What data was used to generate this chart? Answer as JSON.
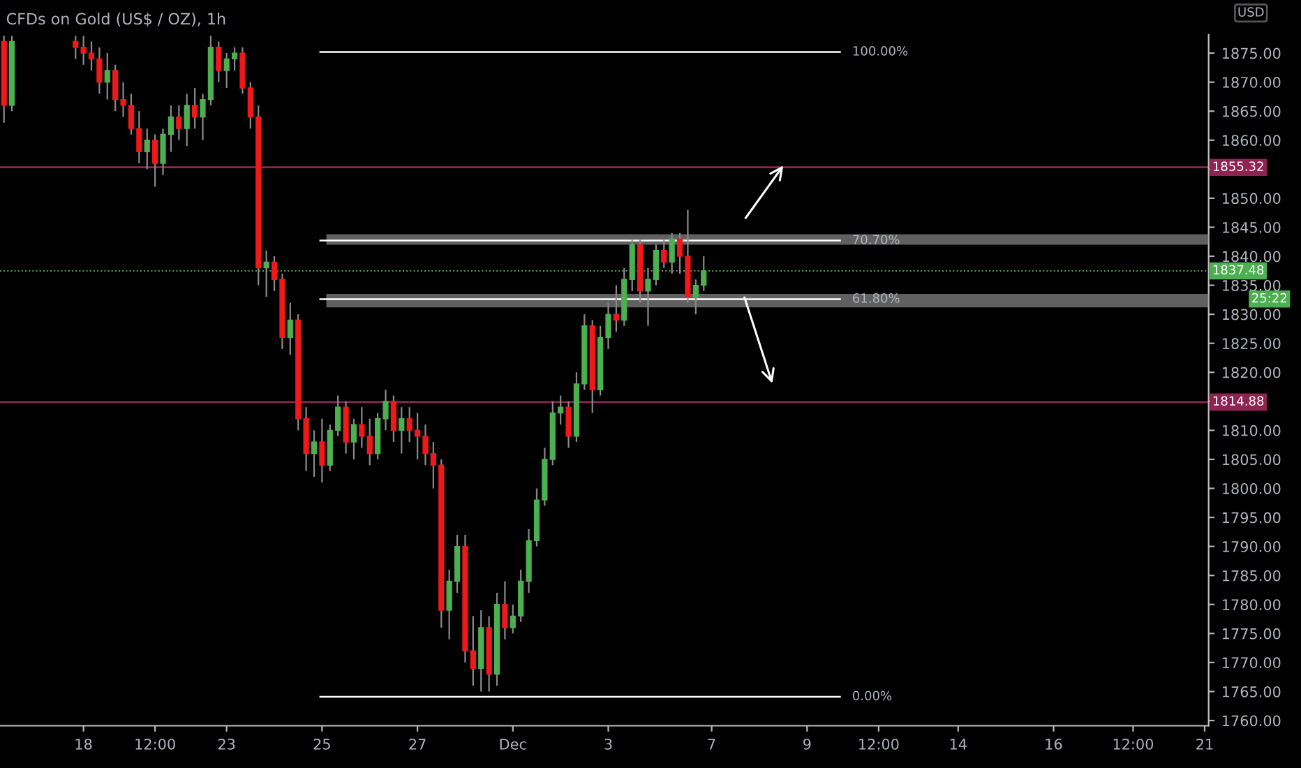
{
  "chart_data": {
    "type": "candlestick",
    "title": "CFDs on Gold (US$ / OZ), 1h",
    "ylabel": "USD",
    "categories": [
      null,
      null,
      null,
      null,
      null,
      null,
      null,
      null,
      null,
      null,
      "18",
      null,
      null,
      null,
      null,
      null,
      null,
      null,
      null,
      "12:00",
      null,
      null,
      null,
      null,
      null,
      null,
      null,
      null,
      "23",
      null,
      null,
      null,
      null,
      null,
      null,
      null,
      null,
      null,
      null,
      null,
      "25",
      null,
      null,
      null,
      null,
      null,
      null,
      null,
      null,
      null,
      null,
      null,
      "27",
      null,
      null,
      null,
      null,
      null,
      null,
      null,
      null,
      null,
      null,
      null,
      "Dec",
      null,
      null,
      null,
      null,
      null,
      null,
      null,
      null,
      null,
      null,
      null,
      "3",
      null,
      null,
      null,
      null,
      null,
      null,
      null,
      null,
      null,
      null,
      null,
      null,
      "7",
      null,
      null,
      null,
      null,
      null,
      null,
      null,
      null,
      null,
      null,
      null,
      "9",
      null,
      null,
      null,
      null,
      null,
      null,
      null,
      null,
      "12:00",
      null,
      null,
      null,
      null,
      null,
      null,
      null,
      null,
      null,
      "14",
      null,
      null,
      null,
      null,
      null,
      null,
      null,
      null,
      null,
      null,
      null,
      "16",
      null,
      null,
      null,
      null,
      null,
      null,
      null,
      null,
      null,
      "12:00",
      null,
      null,
      null,
      null,
      null,
      null,
      null,
      null,
      "21"
    ],
    "ohlc": [
      [
        1877,
        1878,
        1863,
        1866
      ],
      [
        1866,
        1878,
        1865,
        1877
      ],
      null,
      null,
      null,
      null,
      null,
      null,
      null,
      [
        1877,
        1878,
        1874,
        1876
      ],
      [
        1876,
        1878,
        1873,
        1875
      ],
      [
        1875,
        1877,
        1872,
        1874
      ],
      [
        1874,
        1876,
        1868,
        1870
      ],
      [
        1870,
        1875,
        1867,
        1872
      ],
      [
        1872,
        1873,
        1865,
        1867
      ],
      [
        1867,
        1870,
        1864,
        1866
      ],
      [
        1866,
        1868,
        1861,
        1862
      ],
      [
        1862,
        1865,
        1856,
        1858
      ],
      [
        1858,
        1862,
        1855,
        1860
      ],
      [
        1860,
        1861,
        1852,
        1856
      ],
      [
        1856,
        1862,
        1854,
        1861
      ],
      [
        1861,
        1866,
        1858,
        1864
      ],
      [
        1864,
        1866,
        1860,
        1862
      ],
      [
        1862,
        1868,
        1859,
        1866
      ],
      [
        1866,
        1869,
        1862,
        1864
      ],
      [
        1864,
        1868,
        1860,
        1867
      ],
      [
        1867,
        1878,
        1866,
        1876
      ],
      [
        1876,
        1877,
        1870,
        1872
      ],
      [
        1872,
        1875,
        1869,
        1874
      ],
      [
        1874,
        1876,
        1872,
        1875
      ],
      [
        1875,
        1876,
        1868,
        1869
      ],
      [
        1869,
        1870,
        1862,
        1864
      ],
      [
        1864,
        1866,
        1835,
        1838
      ],
      [
        1838,
        1841,
        1833,
        1839
      ],
      [
        1839,
        1840,
        1834,
        1836
      ],
      [
        1836,
        1837,
        1824,
        1826
      ],
      [
        1826,
        1832,
        1823,
        1829
      ],
      [
        1829,
        1830,
        1810,
        1812
      ],
      [
        1812,
        1814,
        1803,
        1806
      ],
      [
        1806,
        1810,
        1802,
        1808
      ],
      [
        1808,
        1812,
        1801,
        1804
      ],
      [
        1804,
        1811,
        1803,
        1810
      ],
      [
        1810,
        1816,
        1809,
        1814
      ],
      [
        1814,
        1815,
        1806,
        1808
      ],
      [
        1808,
        1812,
        1805,
        1811
      ],
      [
        1811,
        1814,
        1807,
        1809
      ],
      [
        1809,
        1812,
        1804,
        1806
      ],
      [
        1806,
        1813,
        1805,
        1812
      ],
      [
        1812,
        1817,
        1810,
        1815
      ],
      [
        1815,
        1816,
        1808,
        1810
      ],
      [
        1810,
        1814,
        1806,
        1812
      ],
      [
        1812,
        1814,
        1808,
        1810
      ],
      [
        1810,
        1813,
        1805,
        1809
      ],
      [
        1809,
        1811,
        1804,
        1806
      ],
      [
        1806,
        1808,
        1800,
        1804
      ],
      [
        1804,
        1805,
        1776,
        1779
      ],
      [
        1779,
        1786,
        1774,
        1784
      ],
      [
        1784,
        1792,
        1782,
        1790
      ],
      [
        1790,
        1792,
        1770,
        1772
      ],
      [
        1772,
        1778,
        1766,
        1769
      ],
      [
        1769,
        1779,
        1765,
        1776
      ],
      [
        1776,
        1778,
        1765,
        1768
      ],
      [
        1768,
        1782,
        1766,
        1780
      ],
      [
        1780,
        1784,
        1774,
        1776
      ],
      [
        1776,
        1780,
        1775,
        1778
      ],
      [
        1778,
        1786,
        1777,
        1784
      ],
      [
        1784,
        1793,
        1782,
        1791
      ],
      [
        1791,
        1800,
        1790,
        1798
      ],
      [
        1798,
        1807,
        1797,
        1805
      ],
      [
        1805,
        1815,
        1804,
        1813
      ],
      [
        1813,
        1816,
        1811,
        1814
      ],
      [
        1814,
        1815,
        1807,
        1809
      ],
      [
        1809,
        1820,
        1808,
        1818
      ],
      [
        1818,
        1830,
        1817,
        1828
      ],
      [
        1828,
        1829,
        1813,
        1817
      ],
      [
        1817,
        1828,
        1816,
        1826
      ],
      [
        1826,
        1832,
        1824,
        1830
      ],
      [
        1830,
        1835,
        1827,
        1829
      ],
      [
        1829,
        1838,
        1828,
        1836
      ],
      [
        1836,
        1843,
        1834,
        1842
      ],
      [
        1842,
        1843,
        1832,
        1834
      ],
      [
        1834,
        1838,
        1828,
        1836
      ],
      [
        1836,
        1842,
        1835,
        1841
      ],
      [
        1841,
        1843,
        1838,
        1839
      ],
      [
        1839,
        1844,
        1837,
        1843
      ],
      [
        1843,
        1844,
        1837,
        1840
      ],
      [
        1840,
        1848,
        1832,
        1833
      ],
      [
        1833,
        1836,
        1830,
        1835
      ],
      [
        1835,
        1840,
        1834,
        1837.48
      ],
      null,
      null,
      null,
      null,
      null,
      null,
      null,
      null,
      null,
      null,
      null,
      null,
      null,
      null,
      null,
      null,
      null,
      null,
      null,
      null,
      null,
      null,
      null,
      null,
      null,
      null,
      null,
      null,
      null,
      null,
      null,
      null,
      null,
      null,
      null,
      null,
      null,
      null,
      null,
      null,
      null,
      null,
      null,
      null,
      null,
      null,
      null,
      null,
      null,
      null,
      null,
      null,
      null,
      null,
      null,
      null,
      null,
      null,
      null,
      null,
      null,
      null,
      null
    ],
    "ylim": [
      1759.1,
      1878.2
    ],
    "yticks": [
      {
        "value": 1760,
        "label": "1760.00"
      },
      {
        "value": 1765,
        "label": "1765.00"
      },
      {
        "value": 1770,
        "label": "1770.00"
      },
      {
        "value": 1775,
        "label": "1775.00"
      },
      {
        "value": 1780,
        "label": "1780.00"
      },
      {
        "value": 1785,
        "label": "1785.00"
      },
      {
        "value": 1790,
        "label": "1790.00"
      },
      {
        "value": 1795,
        "label": "1795.00"
      },
      {
        "value": 1800,
        "label": "1800.00"
      },
      {
        "value": 1805,
        "label": "1805.00"
      },
      {
        "value": 1810,
        "label": "1810.00"
      },
      {
        "value": 1815,
        "label": null
      },
      {
        "value": 1820,
        "label": "1820.00"
      },
      {
        "value": 1825,
        "label": "1825.00"
      },
      {
        "value": 1830,
        "label": "1830.00"
      },
      {
        "value": 1835,
        "label": "1835.00"
      },
      {
        "value": 1840,
        "label": "1840.00"
      },
      {
        "value": 1845,
        "label": "1845.00"
      },
      {
        "value": 1850,
        "label": "1850.00"
      },
      {
        "value": 1855,
        "label": null
      },
      {
        "value": 1860,
        "label": "1860.00"
      },
      {
        "value": 1865,
        "label": "1865.00"
      },
      {
        "value": 1870,
        "label": "1870.00"
      },
      {
        "value": 1875,
        "label": "1875.00"
      }
    ],
    "ref_lines": [
      {
        "axis": "y",
        "value": 1875.2,
        "color": "#ffffff"
      },
      {
        "axis": "y",
        "value": 1842.7,
        "color": "#ffffff"
      },
      {
        "axis": "y",
        "value": 1832.6,
        "color": "#ffffff"
      },
      {
        "axis": "y",
        "value": 1764.1,
        "color": "#ffffff"
      },
      {
        "axis": "y",
        "value": 1855.32,
        "label": "1855.32",
        "color": "#8e2451"
      },
      {
        "axis": "y",
        "value": 1814.88,
        "label": "1814.88",
        "color": "#8e2451"
      },
      {
        "axis": "y",
        "value": 1837.48,
        "label": "1837.48",
        "color": "#4caf50",
        "line_style": "dotted"
      }
    ],
    "bands": [
      {
        "axis": "y",
        "from": 1842.0,
        "to": 1843.8,
        "color": "#808080"
      },
      {
        "axis": "y",
        "from": 1831.2,
        "to": 1833.5,
        "color": "#808080"
      }
    ],
    "annotations": [
      "25:22",
      "100.00%",
      "70.70%",
      "61.80%",
      "0.00%"
    ],
    "grid": false
  }
}
